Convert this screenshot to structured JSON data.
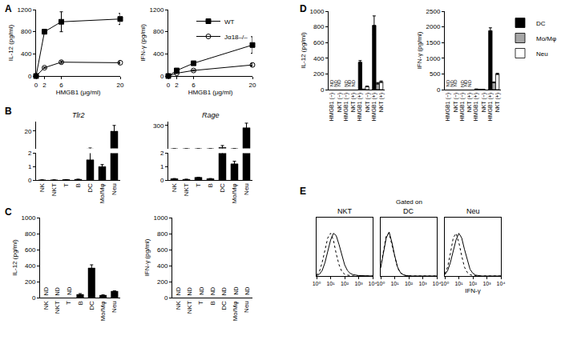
{
  "chart_data": [
    {
      "type": "line",
      "annotations": [
        "A"
      ],
      "x": [
        0,
        2,
        6,
        20
      ],
      "xlabel": "HMGB1 (μg/ml)",
      "ylabel": "IL-12 (pg/ml)",
      "xlim": [
        0,
        20
      ],
      "xticks": [
        0,
        2,
        6,
        20
      ],
      "ylim": [
        0,
        1200
      ],
      "yticks": [
        0,
        400,
        800,
        1200
      ],
      "series": [
        {
          "name": "WT",
          "color": "#000000",
          "marker": "square",
          "values": [
            0,
            800,
            980,
            1030
          ],
          "error": [
            0,
            40,
            180,
            100
          ]
        },
        {
          "name": "Jα18–/–",
          "color": "#000000",
          "marker": "circle-open",
          "values": [
            0,
            150,
            250,
            240
          ],
          "error": [
            0,
            10,
            20,
            20
          ]
        }
      ]
    },
    {
      "type": "line",
      "x": [
        0,
        2,
        6,
        20
      ],
      "xlabel": "HMGB1 (μg/ml)",
      "ylabel": "IFN-γ (pg/ml)",
      "xlim": [
        0,
        20
      ],
      "xticks": [
        0,
        2,
        6,
        20
      ],
      "ylim": [
        0,
        1200
      ],
      "yticks": [
        0,
        400,
        800,
        1200
      ],
      "legend": "upper right",
      "series": [
        {
          "name": "WT",
          "color": "#000000",
          "marker": "square",
          "values": [
            0,
            100,
            230,
            560
          ],
          "error": [
            0,
            10,
            20,
            150
          ]
        },
        {
          "name": "Jα18–/–",
          "color": "#000000",
          "marker": "circle-open",
          "values": [
            0,
            50,
            100,
            200
          ],
          "error": [
            0,
            5,
            10,
            20
          ]
        }
      ]
    },
    {
      "type": "bar",
      "annotations": [
        "B"
      ],
      "title": "Tlr2",
      "categories": [
        "NK",
        "NKT",
        "T",
        "B",
        "DC",
        "Mo/Mφ",
        "Neu"
      ],
      "values": [
        0,
        0,
        0.03,
        0.05,
        1.5,
        1.0,
        20
      ],
      "error": [
        0,
        0,
        0,
        0,
        1.0,
        0.15,
        6
      ],
      "color": "#000000",
      "ylim": [
        0,
        30
      ],
      "yticks": [
        0,
        1,
        2,
        20
      ]
    },
    {
      "type": "bar",
      "title": "Rage",
      "categories": [
        "NK",
        "NKT",
        "T",
        "B",
        "DC",
        "Mo/Mφ",
        "Neu"
      ],
      "values": [
        0.1,
        0.05,
        0.2,
        0.1,
        15,
        1.2,
        270
      ],
      "error": [
        0,
        0,
        0,
        0,
        25,
        0.2,
        60
      ],
      "color": "#000000",
      "ylim": [
        0,
        350
      ],
      "yticks": [
        0,
        1,
        2,
        300
      ]
    },
    {
      "type": "bar",
      "annotations": [
        "C"
      ],
      "ylabel": "IL-12 (pg/ml)",
      "categories": [
        "NK",
        "NKT",
        "T",
        "B",
        "DC",
        "Mo/Mφ",
        "Neu"
      ],
      "values": [
        null,
        null,
        null,
        40,
        370,
        30,
        80
      ],
      "error": [
        null,
        null,
        null,
        10,
        40,
        5,
        5
      ],
      "value_labels": [
        "ND",
        "ND",
        "ND",
        null,
        null,
        null,
        null
      ],
      "color": "#000000",
      "ylim": [
        0,
        1000
      ],
      "yticks": [
        0,
        200,
        400,
        600,
        800,
        1000
      ]
    },
    {
      "type": "bar",
      "ylabel": "IFN-γ (pg/ml)",
      "categories": [
        "NK",
        "NKT",
        "T",
        "B",
        "DC",
        "Mo/Mφ",
        "Neu"
      ],
      "values": [
        null,
        null,
        null,
        null,
        null,
        null,
        null
      ],
      "value_labels": [
        "ND",
        "ND",
        "ND",
        "ND",
        "ND",
        "ND",
        "ND"
      ],
      "color": "#000000",
      "ylim": [
        0,
        1000
      ],
      "yticks": [
        0,
        200,
        400,
        600,
        800,
        1000
      ]
    },
    {
      "type": "bar",
      "annotations": [
        "D"
      ],
      "ylabel": "IL-12 (pg/ml)",
      "categories": [
        [
          "HMGB1 (−)",
          "NKT (−)"
        ],
        [
          "HMGB1 (−)",
          "NKT (+)"
        ],
        [
          "HMGB1 (+)",
          "NKT (−)"
        ],
        [
          "HMGB1 (+)",
          "NKT (+)"
        ]
      ],
      "ylim": [
        0,
        1000
      ],
      "yticks": [
        0,
        200,
        400,
        600,
        800,
        1000
      ],
      "series": [
        {
          "name": "DC",
          "color": "#000000",
          "values": [
            null,
            null,
            350,
            820
          ],
          "error": [
            null,
            null,
            20,
            120
          ],
          "value_labels": [
            "ND",
            "ND",
            null,
            null
          ]
        },
        {
          "name": "Mo/Mφ",
          "color": "#a6a6a6",
          "values": [
            null,
            null,
            5,
            80
          ],
          "error": [
            null,
            null,
            2,
            10
          ],
          "value_labels": [
            "ND",
            "ND",
            null,
            null
          ]
        },
        {
          "name": "Neu",
          "color": "#ffffff",
          "values": [
            null,
            null,
            40,
            100
          ],
          "error": [
            null,
            null,
            5,
            10
          ],
          "value_labels": [
            "ND",
            "ND",
            null,
            null
          ]
        }
      ]
    },
    {
      "type": "bar",
      "ylabel": "IFN-γ (pg/ml)",
      "legend": "outside upper right",
      "categories": [
        [
          "HMGB1 (−)",
          "NKT (−)"
        ],
        [
          "HMGB1 (−)",
          "NKT (+)"
        ],
        [
          "HMGB1 (+)",
          "NKT (−)"
        ],
        [
          "HMGB1 (+)",
          "NKT (+)"
        ]
      ],
      "ylim": [
        0,
        2500
      ],
      "yticks": [
        0,
        500,
        1000,
        1500,
        2000,
        2500
      ],
      "series": [
        {
          "name": "DC",
          "color": "#000000",
          "values": [
            null,
            null,
            15,
            1880
          ],
          "error": [
            null,
            null,
            5,
            90
          ],
          "value_labels": [
            "ND",
            "ND",
            null,
            null
          ]
        },
        {
          "name": "Mo/Mφ",
          "color": "#a6a6a6",
          "values": [
            null,
            null,
            3,
            230
          ],
          "error": [
            null,
            null,
            1,
            15
          ],
          "value_labels": [
            "ND",
            "ND",
            null,
            null
          ]
        },
        {
          "name": "Neu",
          "color": "#ffffff",
          "values": [
            null,
            null,
            5,
            500
          ],
          "error": [
            null,
            null,
            2,
            20
          ],
          "value_labels": [
            "ND",
            "ND",
            null,
            null
          ]
        }
      ]
    },
    {
      "type": "line",
      "annotations": [
        "E",
        "Gated on"
      ],
      "title": "NKT",
      "log": "x",
      "tick_labels": "x",
      "x": [
        1,
        1.6,
        2.5,
        4,
        6.3,
        10,
        16,
        25,
        40,
        63,
        100,
        160,
        250,
        400,
        1000,
        10000
      ],
      "xlim": [
        1,
        10000
      ],
      "xticks": [
        {
          "value": 1,
          "label": "10⁰"
        },
        {
          "value": 10,
          "label": "10¹"
        },
        {
          "value": 100,
          "label": "10²"
        },
        {
          "value": 1000,
          "label": "10³"
        },
        {
          "value": 10000,
          "label": "10⁴"
        }
      ],
      "ylim": [
        0,
        130
      ],
      "series": [
        {
          "color": "#000000",
          "line_style": "dot",
          "values": [
            2,
            10,
            30,
            60,
            85,
            95,
            80,
            50,
            25,
            10,
            4,
            2,
            1,
            0,
            0,
            0
          ]
        },
        {
          "color": "#000000",
          "line_style": "solid",
          "values": [
            1,
            4,
            12,
            30,
            55,
            80,
            95,
            90,
            70,
            45,
            25,
            12,
            6,
            3,
            1,
            0
          ]
        }
      ]
    },
    {
      "type": "line",
      "title": "DC",
      "log": "x",
      "tick_labels": "x",
      "x": [
        1,
        1.6,
        2.5,
        4,
        6.3,
        10,
        16,
        25,
        40,
        63,
        100,
        160,
        250,
        400,
        1000,
        10000
      ],
      "xlim": [
        1,
        10000
      ],
      "xticks": [
        {
          "value": 1,
          "label": "10⁰"
        },
        {
          "value": 10,
          "label": "10¹"
        },
        {
          "value": 100,
          "label": "10²"
        },
        {
          "value": 1000,
          "label": "10³"
        },
        {
          "value": 10000,
          "label": "10⁴"
        }
      ],
      "ylim": [
        0,
        130
      ],
      "series": [
        {
          "color": "#000000",
          "line_style": "dot",
          "values": [
            20,
            55,
            90,
            95,
            70,
            40,
            18,
            7,
            3,
            1,
            0,
            0,
            0,
            0,
            0,
            0
          ]
        },
        {
          "color": "#000000",
          "line_style": "solid",
          "values": [
            18,
            50,
            85,
            98,
            75,
            45,
            20,
            8,
            3,
            1,
            0,
            0,
            0,
            0,
            0,
            0
          ]
        }
      ]
    },
    {
      "type": "line",
      "title": "Neu",
      "xlabel": "IFN-γ",
      "log": "x",
      "tick_labels": "x",
      "x": [
        1,
        1.6,
        2.5,
        4,
        6.3,
        10,
        16,
        25,
        40,
        63,
        100,
        160,
        250,
        400,
        1000,
        10000
      ],
      "xlim": [
        1,
        10000
      ],
      "xticks": [
        {
          "value": 1,
          "label": "10⁰"
        },
        {
          "value": 10,
          "label": "10¹"
        },
        {
          "value": 100,
          "label": "10²"
        },
        {
          "value": 1000,
          "label": "10³"
        },
        {
          "value": 10000,
          "label": "10⁴"
        }
      ],
      "ylim": [
        0,
        130
      ],
      "series": [
        {
          "color": "#000000",
          "line_style": "dot",
          "values": [
            5,
            20,
            50,
            85,
            95,
            75,
            45,
            20,
            8,
            3,
            1,
            0,
            0,
            0,
            0,
            0
          ]
        },
        {
          "color": "#000000",
          "line_style": "solid",
          "values": [
            3,
            12,
            30,
            55,
            80,
            95,
            85,
            60,
            35,
            15,
            6,
            2,
            1,
            0,
            0,
            0
          ]
        }
      ]
    }
  ]
}
